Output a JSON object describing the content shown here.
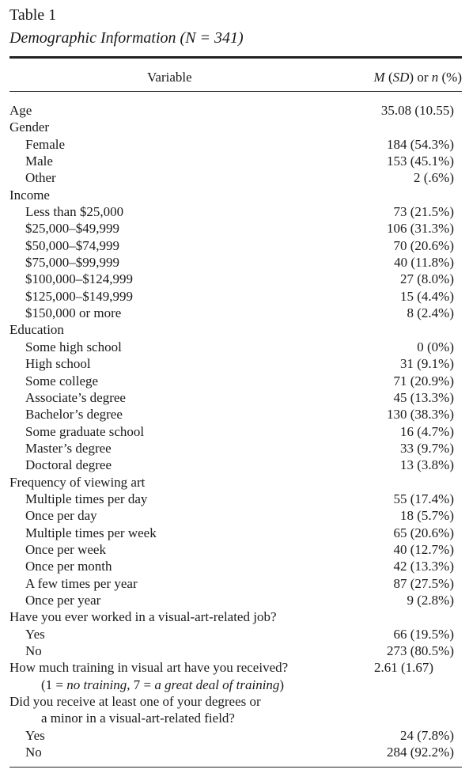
{
  "table_label": "Table 1",
  "table_title": "Demographic Information (N = 341)",
  "header": {
    "variable": "Variable",
    "stat_m": "M",
    "stat_sd": "SD",
    "stat_or": "or",
    "stat_n": "n",
    "stat_pct": "(%)"
  },
  "rows": [
    {
      "label": "Age",
      "value": "35.08 (10.55)",
      "level": 0
    },
    {
      "label": "Gender",
      "value": "",
      "level": 0
    },
    {
      "label": "Female",
      "value": "184 (54.3%)",
      "level": 1
    },
    {
      "label": "Male",
      "value": "153 (45.1%)",
      "level": 1
    },
    {
      "label": "Other",
      "value": "2 (.6%)",
      "level": 1
    },
    {
      "label": "Income",
      "value": "",
      "level": 0
    },
    {
      "label": "Less than $25,000",
      "value": "73 (21.5%)",
      "level": 1
    },
    {
      "label": "$25,000–$49,999",
      "value": "106 (31.3%)",
      "level": 1
    },
    {
      "label": "$50,000–$74,999",
      "value": "70 (20.6%)",
      "level": 1
    },
    {
      "label": "$75,000–$99,999",
      "value": "40 (11.8%)",
      "level": 1
    },
    {
      "label": "$100,000–$124,999",
      "value": "27 (8.0%)",
      "level": 1
    },
    {
      "label": "$125,000–$149,999",
      "value": "15 (4.4%)",
      "level": 1
    },
    {
      "label": "$150,000 or more",
      "value": "8 (2.4%)",
      "level": 1
    },
    {
      "label": "Education",
      "value": "",
      "level": 0
    },
    {
      "label": "Some high school",
      "value": "0 (0%)",
      "level": 1
    },
    {
      "label": "High school",
      "value": "31 (9.1%)",
      "level": 1
    },
    {
      "label": "Some college",
      "value": "71 (20.9%)",
      "level": 1
    },
    {
      "label": "Associate’s degree",
      "value": "45 (13.3%)",
      "level": 1
    },
    {
      "label": "Bachelor’s degree",
      "value": "130 (38.3%)",
      "level": 1
    },
    {
      "label": "Some graduate school",
      "value": "16 (4.7%)",
      "level": 1
    },
    {
      "label": "Master’s degree",
      "value": "33 (9.7%)",
      "level": 1
    },
    {
      "label": "Doctoral degree",
      "value": "13 (3.8%)",
      "level": 1
    },
    {
      "label": "Frequency of viewing art",
      "value": "",
      "level": 0
    },
    {
      "label": "Multiple times per day",
      "value": "55 (17.4%)",
      "level": 1
    },
    {
      "label": "Once per day",
      "value": "18 (5.7%)",
      "level": 1
    },
    {
      "label": "Multiple times per week",
      "value": "65 (20.6%)",
      "level": 1
    },
    {
      "label": "Once per week",
      "value": "40 (12.7%)",
      "level": 1
    },
    {
      "label": "Once per month",
      "value": "42 (13.3%)",
      "level": 1
    },
    {
      "label": "A few times per year",
      "value": "87 (27.5%)",
      "level": 1
    },
    {
      "label": "Once per year",
      "value": "9 (2.8%)",
      "level": 1
    },
    {
      "label": "Have you ever worked in a visual-art-related job?",
      "value": "",
      "level": 0
    },
    {
      "label": "Yes",
      "value": "66 (19.5%)",
      "level": 1
    },
    {
      "label": "No",
      "value": "273 (80.5%)",
      "level": 1
    },
    {
      "label": "How much training in visual art have you received?",
      "value": "2.61 (1.67)",
      "level": 0,
      "value_left": true
    },
    {
      "label": "(1 = no training, 7 = a great deal of training)",
      "value": "",
      "level": 2,
      "italic_scale": true
    },
    {
      "label": "Did you receive at least one of your degrees or",
      "value": "",
      "level": 0
    },
    {
      "label": "a minor in a visual-art-related field?",
      "value": "",
      "level": 2
    },
    {
      "label": "Yes",
      "value": "24 (7.8%)",
      "level": 1
    },
    {
      "label": "No",
      "value": "284 (92.2%)",
      "level": 1
    }
  ]
}
